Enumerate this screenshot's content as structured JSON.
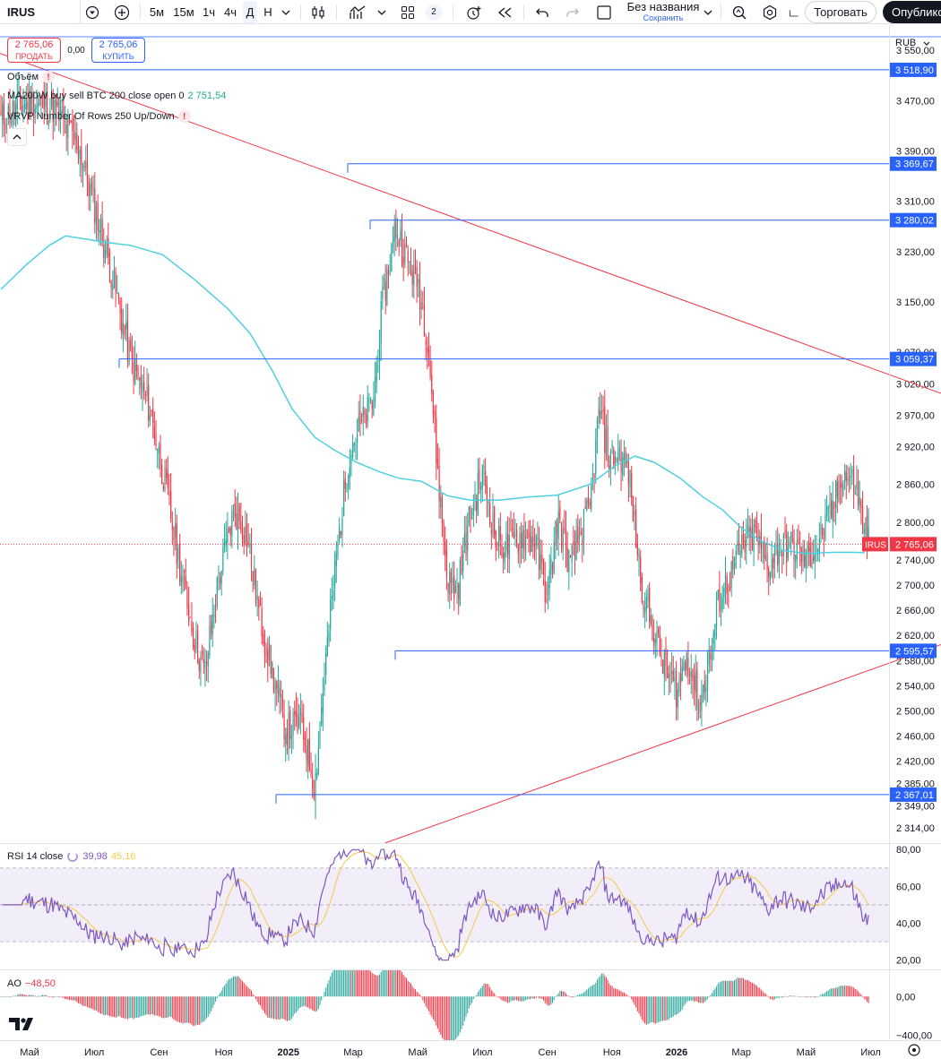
{
  "toolbar": {
    "symbol": "IRUS",
    "timeframes": [
      "5м",
      "15м",
      "1ч",
      "4ч",
      "Д",
      "Н"
    ],
    "active_timeframe": "Д",
    "layouts_count": "2",
    "layout_name": "Без названия",
    "save_status": "Сохранить",
    "trade_label": "Торговать",
    "publish_label": "Опублико",
    "icons": [
      "favorite-icon",
      "add-symbol-icon",
      "chevron-down-icon",
      "candles-icon",
      "indicators-icon",
      "templates-icon",
      "alert-icon",
      "replay-icon",
      "undo-icon",
      "redo-icon",
      "fullscreen-square-icon",
      "quick-search-icon",
      "settings-icon",
      "camera-icon"
    ]
  },
  "trade_widget": {
    "sell_price": "2 765,06",
    "sell_label": "ПРОДАТЬ",
    "spread": "0,00",
    "buy_price": "2 765,06",
    "buy_label": "КУПИТЬ"
  },
  "currency": "RUB",
  "legends": {
    "volume_label": "Объём",
    "ma_label": "MA200W buy sell BTC 200 close open 0",
    "ma_value": "2 751,54",
    "vrvp_label": "VRVP Number Of Rows 250 Up/Down",
    "rsi_label": "RSI 14 close",
    "rsi_value": "39,98",
    "rsi_ma_value": "45,16",
    "ao_label": "AO",
    "ao_value": "−48,50"
  },
  "colors": {
    "up": "#26a69a",
    "down": "#f23645",
    "ma": "#4dd0e1",
    "hline": "#2962ff",
    "trend": "#f23645",
    "rsi": "#7e57c2",
    "rsi_ma": "#f7c948",
    "accent": "#2962ff"
  },
  "chart_data": [
    {
      "type": "candlestick",
      "symbol": "IRUS",
      "timeframe": "D",
      "ylim": [
        2290,
        3590
      ],
      "y_ticks": [
        "3 550,00",
        "3 470,00",
        "3 390,00",
        "3 310,00",
        "3 230,00",
        "3 150,00",
        "3 070,00",
        "3 020,00",
        "2 970,00",
        "2 920,00",
        "2 860,00",
        "2 800,00",
        "2 740,00",
        "2 700,00",
        "2 660,00",
        "2 620,00",
        "2 580,00",
        "2 540,00",
        "2 500,00",
        "2 460,00",
        "2 420,00",
        "2 385,00",
        "2 349,00",
        "2 314,00"
      ],
      "x_ticks": [
        "Май",
        "Июл",
        "Сен",
        "Ноя",
        "2025",
        "Мар",
        "Май",
        "Июл",
        "Сен",
        "Ноя",
        "2026",
        "Мар",
        "Май",
        "Июл"
      ],
      "last_price": 2765.06,
      "last_price_label": "2 765,06",
      "close_path": [
        [
          0,
          3440
        ],
        [
          0.8,
          3470
        ],
        [
          1.6,
          3460
        ],
        [
          2.4,
          3400
        ],
        [
          3.0,
          3280
        ],
        [
          3.4,
          3200
        ],
        [
          4.0,
          3060
        ],
        [
          4.6,
          2980
        ],
        [
          5.0,
          2880
        ],
        [
          5.5,
          2740
        ],
        [
          6.0,
          2610
        ],
        [
          6.3,
          2560
        ],
        [
          6.7,
          2700
        ],
        [
          7.2,
          2820
        ],
        [
          7.6,
          2780
        ],
        [
          8.0,
          2650
        ],
        [
          8.4,
          2560
        ],
        [
          8.8,
          2470
        ],
        [
          9.3,
          2480
        ],
        [
          9.7,
          2380
        ],
        [
          10.0,
          2560
        ],
        [
          10.4,
          2760
        ],
        [
          10.8,
          2920
        ],
        [
          11.1,
          2950
        ],
        [
          11.5,
          2990
        ],
        [
          11.8,
          3150
        ],
        [
          12.2,
          3270
        ],
        [
          12.6,
          3210
        ],
        [
          12.9,
          3180
        ],
        [
          13.2,
          3090
        ],
        [
          13.5,
          2880
        ],
        [
          13.8,
          2710
        ],
        [
          14.1,
          2690
        ],
        [
          14.5,
          2810
        ],
        [
          14.9,
          2880
        ],
        [
          15.3,
          2770
        ],
        [
          15.7,
          2760
        ],
        [
          16.1,
          2780
        ],
        [
          16.5,
          2770
        ],
        [
          16.9,
          2680
        ],
        [
          17.2,
          2810
        ],
        [
          17.6,
          2730
        ],
        [
          17.9,
          2780
        ],
        [
          18.2,
          2820
        ],
        [
          18.5,
          2980
        ],
        [
          18.8,
          2900
        ],
        [
          19.1,
          2910
        ],
        [
          19.4,
          2880
        ],
        [
          19.8,
          2700
        ],
        [
          20.1,
          2640
        ],
        [
          20.5,
          2570
        ],
        [
          20.9,
          2530
        ],
        [
          21.2,
          2590
        ],
        [
          21.6,
          2510
        ],
        [
          21.9,
          2580
        ],
        [
          22.2,
          2680
        ],
        [
          22.6,
          2720
        ],
        [
          22.9,
          2760
        ],
        [
          23.3,
          2780
        ],
        [
          23.7,
          2730
        ],
        [
          24.1,
          2760
        ],
        [
          24.5,
          2760
        ],
        [
          24.9,
          2740
        ],
        [
          25.3,
          2770
        ],
        [
          25.7,
          2820
        ],
        [
          26.0,
          2880
        ],
        [
          26.4,
          2860
        ],
        [
          26.7,
          2790
        ],
        [
          27.0,
          2765
        ]
      ],
      "hlines": [
        {
          "price": 3518.9,
          "label": "3 518,90"
        },
        {
          "price": 3369.67,
          "label": "3 369,67"
        },
        {
          "price": 3280.02,
          "label": "3 280,02"
        },
        {
          "price": 3059.37,
          "label": "3 059,37"
        },
        {
          "price": 2595.57,
          "label": "2 595,57"
        },
        {
          "price": 2367.01,
          "label": "2 367,01"
        }
      ],
      "trendlines": [
        {
          "from": [
            0,
            3545
          ],
          "to": [
            29.88,
            2990
          ]
        },
        {
          "from": [
            11.9,
            2290
          ],
          "to": [
            29.88,
            2620
          ]
        }
      ],
      "ma200": [
        [
          0,
          3170
        ],
        [
          0.8,
          3210
        ],
        [
          1.5,
          3240
        ],
        [
          2.0,
          3255
        ],
        [
          2.6,
          3250
        ],
        [
          3.2,
          3245
        ],
        [
          4.0,
          3240
        ],
        [
          5.0,
          3225
        ],
        [
          6.0,
          3185
        ],
        [
          7.0,
          3140
        ],
        [
          7.7,
          3100
        ],
        [
          8.4,
          3040
        ],
        [
          9.0,
          2980
        ],
        [
          9.7,
          2935
        ],
        [
          10.3,
          2915
        ],
        [
          11.0,
          2895
        ],
        [
          11.7,
          2880
        ],
        [
          12.3,
          2870
        ],
        [
          13.0,
          2865
        ],
        [
          13.8,
          2842
        ],
        [
          14.5,
          2835
        ],
        [
          15.4,
          2835
        ],
        [
          16.3,
          2840
        ],
        [
          17.2,
          2843
        ],
        [
          18.2,
          2860
        ],
        [
          19.0,
          2890
        ],
        [
          19.6,
          2905
        ],
        [
          20.2,
          2895
        ],
        [
          21.0,
          2870
        ],
        [
          21.7,
          2840
        ],
        [
          22.3,
          2820
        ],
        [
          22.9,
          2790
        ],
        [
          23.5,
          2770
        ],
        [
          24.2,
          2755
        ],
        [
          24.9,
          2750
        ],
        [
          25.7,
          2752
        ],
        [
          26.4,
          2752
        ],
        [
          26.7,
          2751.54
        ]
      ]
    },
    {
      "type": "line",
      "name": "RSI 14 close",
      "ylim": [
        15,
        83
      ],
      "y_ticks": [
        "80,00",
        "60,00",
        "40,00",
        "20,00"
      ],
      "bands": [
        30,
        70
      ],
      "mid": 50,
      "rsi_value": 39.98,
      "rsi_ma_value": 45.16
    },
    {
      "type": "bar",
      "name": "AO",
      "y_ticks": [
        "0,00",
        "−400,00"
      ],
      "ao_value": -48.5
    }
  ]
}
